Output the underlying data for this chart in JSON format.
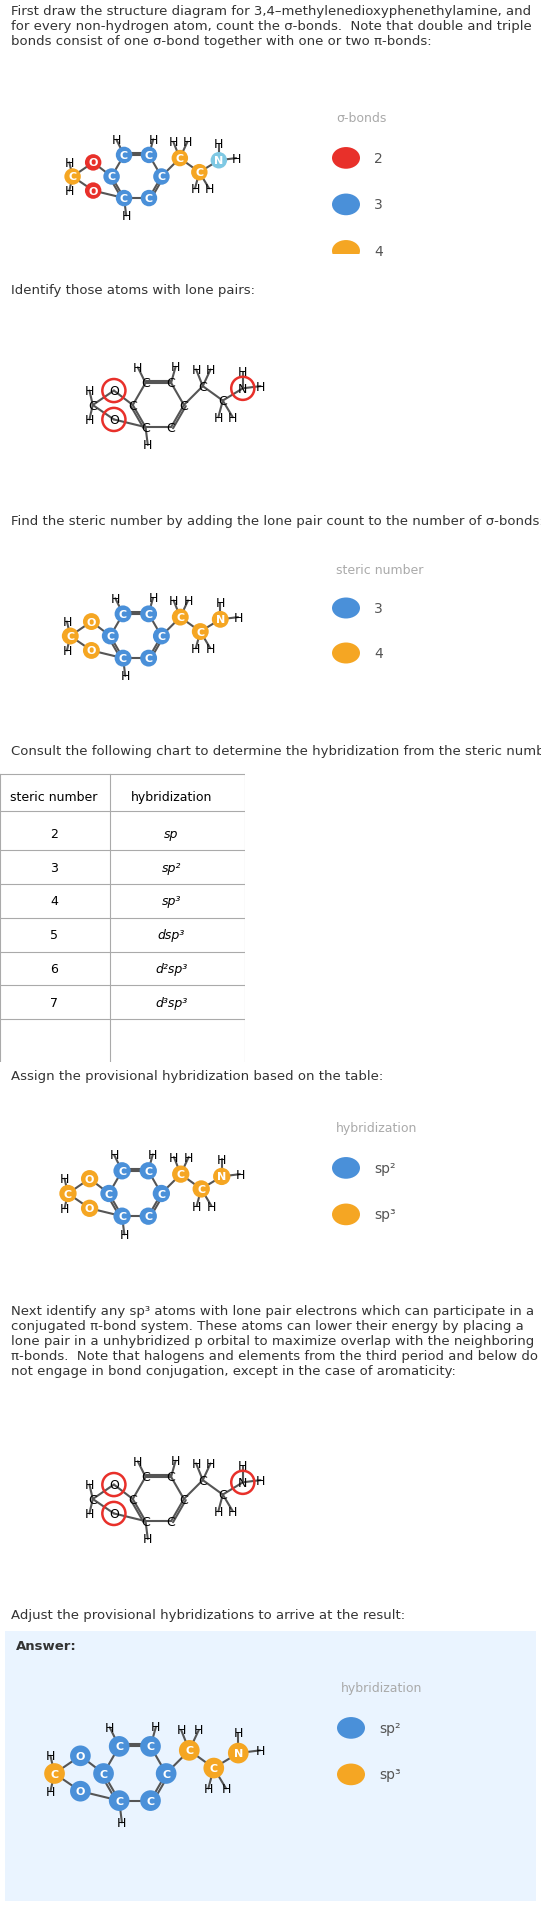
{
  "title_text": "First draw the structure diagram for 3,4–methylenedioxyphenethylamine, and for every non-hydrogen atom, count the σ-bonds.  Note that double and triple bonds consist of one σ-bond together with one or two π-bonds:",
  "section2_text": "Identify those atoms with lone pairs:",
  "section3_text": "Find the steric number by adding the lone pair count to the number of σ-bonds:",
  "section4_text": "Consult the following chart to determine the hybridization from the steric number:",
  "section5_text": "Assign the provisional hybridization based on the table:",
  "section6_text": "Next identify any sp³ atoms with lone pair electrons which can participate in a conjugated π-bond system. These atoms can lower their energy by placing a lone pair in a unhybridized p orbital to maximize overlap with the neighboring π-bonds.  Note that halogens and elements from the third period and below do not engage in bond conjugation, except in the case of aromaticity:",
  "section7_text": "Adjust the provisional hybridizations to arrive at the result:",
  "answer_text": "Answer:",
  "steric_table_rows": [
    [
      "2",
      "sp"
    ],
    [
      "3",
      "sp²"
    ],
    [
      "4",
      "sp³"
    ],
    [
      "5",
      "dsp³"
    ],
    [
      "6",
      "d²sp³"
    ],
    [
      "7",
      "d³sp³"
    ]
  ],
  "colors": {
    "red": "#E8302A",
    "blue": "#4A90D9",
    "orange": "#F5A623",
    "light_blue": "#7EC8E3",
    "white": "#FFFFFF",
    "black": "#000000",
    "gray_text": "#AAAAAA",
    "label_text": "#555555",
    "bg": "#FFFFFF",
    "answer_bg": "#EAF4FF",
    "divider": "#CCCCCC",
    "bond": "#555555",
    "text_color": "#333333"
  },
  "fig_width": 5.41,
  "fig_height": 19.06,
  "dpi": 100
}
